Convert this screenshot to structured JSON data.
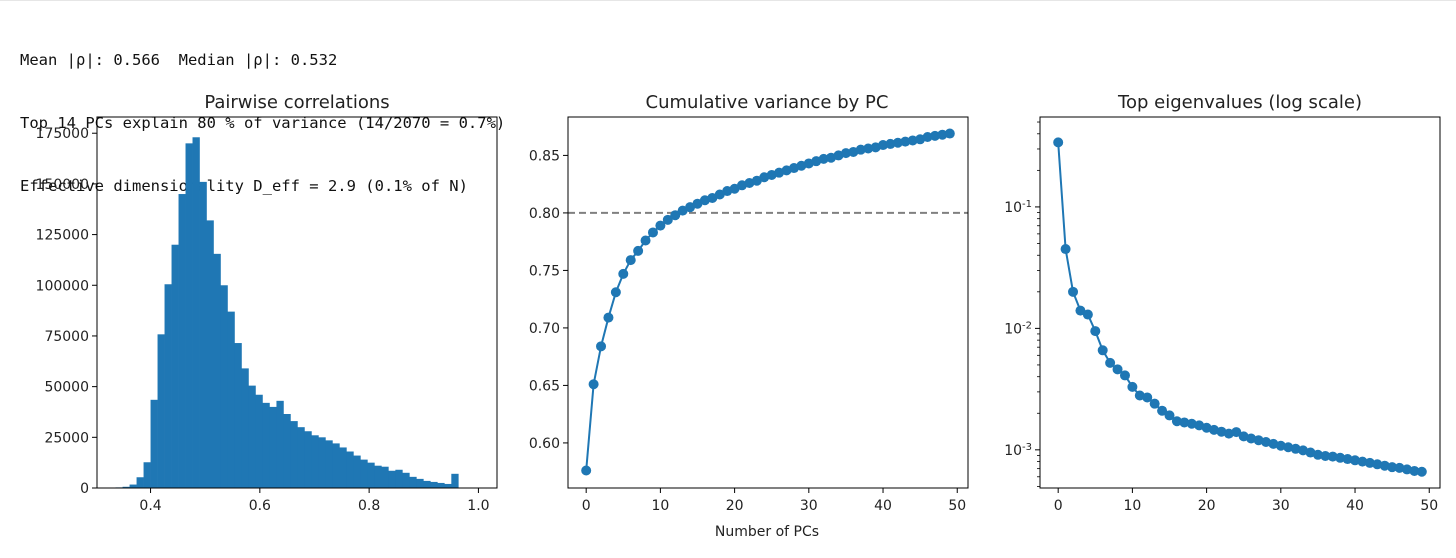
{
  "stats": {
    "line1": "Mean |ρ|: 0.566  Median |ρ|: 0.532",
    "line2": "Top 14 PCs explain 80 % of variance (14/2070 = 0.7%)",
    "line3": "Effective dimensionality D_eff = 2.9 (0.1% of N)"
  },
  "colors": {
    "series": "#1f77b4",
    "reference_line": "#808080",
    "axes": "#000000"
  },
  "chart_data": [
    {
      "type": "bar",
      "title": "Pairwise correlations",
      "xlabel": "",
      "ylabel": "",
      "xlim": [
        0.302,
        1.034
      ],
      "ylim": [
        0,
        183000
      ],
      "xticks": [
        "0.4",
        "0.6",
        "0.8",
        "1.0"
      ],
      "xtick_values": [
        0.4,
        0.6,
        0.8,
        1.0
      ],
      "yticks": [
        "0",
        "25000",
        "50000",
        "75000",
        "100000",
        "125000",
        "150000",
        "175000"
      ],
      "ytick_values": [
        0,
        25000,
        50000,
        75000,
        100000,
        125000,
        150000,
        175000
      ],
      "bin_start": 0.336,
      "bin_width": 0.0128,
      "counts": [
        300,
        600,
        1700,
        5300,
        12700,
        43500,
        75800,
        100500,
        120000,
        145000,
        170000,
        173000,
        151000,
        132000,
        115500,
        100000,
        87000,
        71500,
        59000,
        50500,
        46000,
        42000,
        40000,
        43000,
        36500,
        33000,
        30000,
        28000,
        26000,
        25000,
        23500,
        22000,
        20000,
        18000,
        16000,
        14000,
        12500,
        11000,
        10500,
        8500,
        9000,
        7500,
        5500,
        4500,
        3500,
        3000,
        2500,
        2000,
        7000
      ]
    },
    {
      "type": "line",
      "title": "Cumulative variance by PC",
      "xlabel": "Number of PCs",
      "ylabel": "",
      "xlim": [
        -2.45,
        51.45
      ],
      "ylim": [
        0.5608,
        0.8834
      ],
      "xticks": [
        "0",
        "10",
        "20",
        "30",
        "40",
        "50"
      ],
      "xtick_values": [
        0,
        10,
        20,
        30,
        40,
        50
      ],
      "yticks": [
        "0.60",
        "0.65",
        "0.70",
        "0.75",
        "0.80",
        "0.85"
      ],
      "ytick_values": [
        0.6,
        0.65,
        0.7,
        0.75,
        0.8,
        0.85
      ],
      "reference_line": 0.8,
      "x": [
        0,
        1,
        2,
        3,
        4,
        5,
        6,
        7,
        8,
        9,
        10,
        11,
        12,
        13,
        14,
        15,
        16,
        17,
        18,
        19,
        20,
        21,
        22,
        23,
        24,
        25,
        26,
        27,
        28,
        29,
        30,
        31,
        32,
        33,
        34,
        35,
        36,
        37,
        38,
        39,
        40,
        41,
        42,
        43,
        44,
        45,
        46,
        47,
        48,
        49
      ],
      "y": [
        0.576,
        0.651,
        0.684,
        0.709,
        0.731,
        0.747,
        0.759,
        0.767,
        0.776,
        0.783,
        0.789,
        0.794,
        0.798,
        0.802,
        0.805,
        0.808,
        0.811,
        0.813,
        0.816,
        0.819,
        0.821,
        0.824,
        0.826,
        0.828,
        0.831,
        0.833,
        0.835,
        0.837,
        0.839,
        0.841,
        0.843,
        0.845,
        0.847,
        0.848,
        0.85,
        0.852,
        0.853,
        0.855,
        0.856,
        0.857,
        0.859,
        0.86,
        0.861,
        0.862,
        0.863,
        0.864,
        0.866,
        0.867,
        0.868,
        0.869
      ]
    },
    {
      "type": "line",
      "title": "Top eigenvalues (log scale)",
      "xlabel": "",
      "ylabel": "",
      "yscale": "log",
      "xlim": [
        -2.45,
        51.45
      ],
      "ylim": [
        0.000485,
        0.55
      ],
      "xticks": [
        "0",
        "10",
        "20",
        "30",
        "40",
        "50"
      ],
      "xtick_values": [
        0,
        10,
        20,
        30,
        40,
        50
      ],
      "yticks": [
        "10^-1",
        "10^-2",
        "10^-3"
      ],
      "ytick_values": [
        0.1,
        0.01,
        0.001
      ],
      "x": [
        0,
        1,
        2,
        3,
        4,
        5,
        6,
        7,
        8,
        9,
        10,
        11,
        12,
        13,
        14,
        15,
        16,
        17,
        18,
        19,
        20,
        21,
        22,
        23,
        24,
        25,
        26,
        27,
        28,
        29,
        30,
        31,
        32,
        33,
        34,
        35,
        36,
        37,
        38,
        39,
        40,
        41,
        42,
        43,
        44,
        45,
        46,
        47,
        48,
        49
      ],
      "y": [
        0.34,
        0.045,
        0.02,
        0.014,
        0.013,
        0.0095,
        0.0066,
        0.0052,
        0.0046,
        0.0041,
        0.0033,
        0.0028,
        0.0027,
        0.0024,
        0.0021,
        0.00192,
        0.00172,
        0.00168,
        0.00164,
        0.00159,
        0.00152,
        0.00146,
        0.00141,
        0.00136,
        0.0014,
        0.00129,
        0.00124,
        0.0012,
        0.00116,
        0.00112,
        0.00108,
        0.00105,
        0.00102,
        0.00099,
        0.00095,
        0.00091,
        0.00089,
        0.00088,
        0.00086,
        0.00084,
        0.00082,
        0.0008,
        0.00078,
        0.00076,
        0.00074,
        0.00072,
        0.00071,
        0.00069,
        0.00067,
        0.00066
      ]
    }
  ]
}
